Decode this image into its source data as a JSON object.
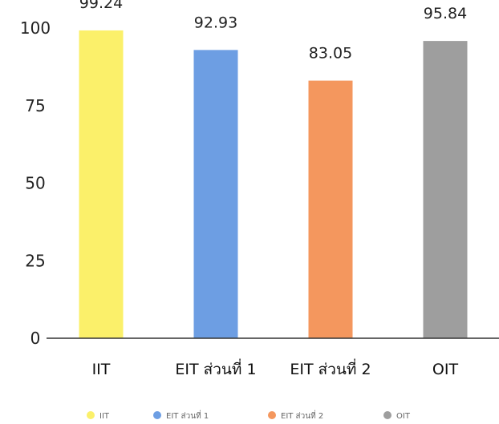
{
  "chart_data": {
    "type": "bar",
    "title": "",
    "xlabel": "",
    "ylabel": "",
    "ylim": [
      0,
      100
    ],
    "yticks": [
      0,
      25,
      50,
      75,
      100
    ],
    "grid": false,
    "legend_position": "bottom",
    "categories": [
      "IIT",
      "EIT ส่วนที่ 1",
      "EIT ส่วนที่ 2",
      "OIT"
    ],
    "values": [
      99.24,
      92.93,
      83.05,
      95.84
    ],
    "value_labels": [
      "99.24",
      "92.93",
      "83.05",
      "95.84"
    ],
    "colors": [
      "#fbf06a",
      "#6d9ee3",
      "#f4975e",
      "#9e9e9e"
    ],
    "legend": [
      "IIT",
      "EIT ส่วนที่ 1",
      "EIT ส่วนที่ 2",
      "OIT"
    ]
  }
}
